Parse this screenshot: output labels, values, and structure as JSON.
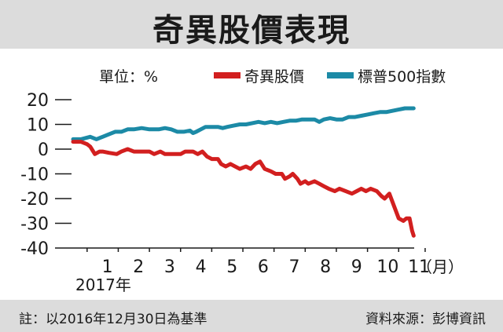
{
  "title": "奇異股價表現",
  "unit_label": "單位：%",
  "year_label": "2017年",
  "footnote": "註：以2016年12月30日為基準",
  "source": "資料來源：彭博資訊",
  "colors": {
    "ge": "#d21f1f",
    "sp500": "#1c8aa6",
    "band": "#dcdcdc"
  },
  "chart_data": {
    "type": "line",
    "title": "奇異股價表現",
    "ylabel": "單位：%",
    "xlabel": "",
    "ylim": [
      -40,
      20
    ],
    "xlim": [
      0,
      11.2
    ],
    "yticks": [
      20,
      10,
      0,
      -10,
      -20,
      -30,
      -40
    ],
    "ytick_labels": [
      "20",
      "10",
      "0",
      "-10",
      "-20",
      "-30",
      "-40"
    ],
    "xticks": [
      1,
      2,
      3,
      4,
      5,
      6,
      7,
      8,
      9,
      10,
      11
    ],
    "xtick_labels": [
      "1",
      "2",
      "3",
      "4",
      "5",
      "6",
      "7",
      "8",
      "9",
      "10",
      "11"
    ],
    "x_unit_label": "（月）",
    "grid": false,
    "legend_position": "top",
    "series": [
      {
        "name": "奇異股價",
        "color": "#d21f1f",
        "points": [
          [
            0.05,
            3
          ],
          [
            0.3,
            3
          ],
          [
            0.5,
            2
          ],
          [
            0.6,
            1
          ],
          [
            0.75,
            -2
          ],
          [
            0.9,
            -1
          ],
          [
            1.0,
            -1
          ],
          [
            1.2,
            -1.5
          ],
          [
            1.45,
            -2
          ],
          [
            1.6,
            -1
          ],
          [
            1.8,
            0
          ],
          [
            2.0,
            -1
          ],
          [
            2.25,
            -1
          ],
          [
            2.5,
            -1
          ],
          [
            2.65,
            -2
          ],
          [
            2.85,
            -1
          ],
          [
            3.0,
            -2
          ],
          [
            3.25,
            -2
          ],
          [
            3.5,
            -2
          ],
          [
            3.65,
            -1
          ],
          [
            3.9,
            -1
          ],
          [
            4.05,
            -2
          ],
          [
            4.2,
            -1
          ],
          [
            4.35,
            -3
          ],
          [
            4.5,
            -4
          ],
          [
            4.7,
            -4
          ],
          [
            4.8,
            -6
          ],
          [
            4.95,
            -7
          ],
          [
            5.1,
            -6
          ],
          [
            5.25,
            -7
          ],
          [
            5.4,
            -8
          ],
          [
            5.6,
            -7
          ],
          [
            5.75,
            -8
          ],
          [
            5.9,
            -6
          ],
          [
            6.05,
            -5
          ],
          [
            6.2,
            -8
          ],
          [
            6.4,
            -9
          ],
          [
            6.55,
            -10
          ],
          [
            6.75,
            -10
          ],
          [
            6.85,
            -12
          ],
          [
            7.0,
            -11
          ],
          [
            7.1,
            -10
          ],
          [
            7.25,
            -12
          ],
          [
            7.35,
            -14
          ],
          [
            7.5,
            -13
          ],
          [
            7.6,
            -14
          ],
          [
            7.8,
            -13
          ],
          [
            7.95,
            -14
          ],
          [
            8.1,
            -15
          ],
          [
            8.25,
            -16
          ],
          [
            8.45,
            -17
          ],
          [
            8.6,
            -16
          ],
          [
            8.8,
            -17
          ],
          [
            9.0,
            -18
          ],
          [
            9.15,
            -17
          ],
          [
            9.3,
            -16
          ],
          [
            9.45,
            -17
          ],
          [
            9.6,
            -16
          ],
          [
            9.8,
            -17
          ],
          [
            9.95,
            -19
          ],
          [
            10.05,
            -20
          ],
          [
            10.2,
            -18
          ],
          [
            10.35,
            -23
          ],
          [
            10.5,
            -28
          ],
          [
            10.65,
            -29
          ],
          [
            10.75,
            -28
          ],
          [
            10.85,
            -28
          ],
          [
            10.93,
            -33
          ],
          [
            10.98,
            -35
          ]
        ]
      },
      {
        "name": "標普500指數",
        "color": "#1c8aa6",
        "points": [
          [
            0.05,
            4
          ],
          [
            0.3,
            4
          ],
          [
            0.6,
            5
          ],
          [
            0.8,
            4
          ],
          [
            1.0,
            5
          ],
          [
            1.2,
            6
          ],
          [
            1.4,
            7
          ],
          [
            1.6,
            7
          ],
          [
            1.8,
            8
          ],
          [
            2.0,
            8
          ],
          [
            2.25,
            8.5
          ],
          [
            2.5,
            8
          ],
          [
            2.65,
            8
          ],
          [
            2.8,
            8
          ],
          [
            3.0,
            8.5
          ],
          [
            3.2,
            8
          ],
          [
            3.4,
            7
          ],
          [
            3.6,
            7
          ],
          [
            3.8,
            7.5
          ],
          [
            3.9,
            6.5
          ],
          [
            4.0,
            7
          ],
          [
            4.15,
            8
          ],
          [
            4.3,
            9
          ],
          [
            4.5,
            9
          ],
          [
            4.7,
            9
          ],
          [
            4.85,
            8.5
          ],
          [
            5.0,
            9
          ],
          [
            5.2,
            9.5
          ],
          [
            5.4,
            10
          ],
          [
            5.6,
            10
          ],
          [
            5.8,
            10.5
          ],
          [
            6.0,
            11
          ],
          [
            6.2,
            10.5
          ],
          [
            6.4,
            11
          ],
          [
            6.6,
            10.5
          ],
          [
            6.8,
            11
          ],
          [
            7.0,
            11.5
          ],
          [
            7.2,
            11.5
          ],
          [
            7.4,
            12
          ],
          [
            7.6,
            12
          ],
          [
            7.8,
            12
          ],
          [
            7.95,
            11
          ],
          [
            8.1,
            12
          ],
          [
            8.3,
            12.5
          ],
          [
            8.5,
            12
          ],
          [
            8.7,
            12
          ],
          [
            8.9,
            13
          ],
          [
            9.1,
            13
          ],
          [
            9.3,
            13.5
          ],
          [
            9.5,
            14
          ],
          [
            9.7,
            14.5
          ],
          [
            9.9,
            15
          ],
          [
            10.1,
            15
          ],
          [
            10.3,
            15.5
          ],
          [
            10.5,
            16
          ],
          [
            10.7,
            16.5
          ],
          [
            10.9,
            16.5
          ],
          [
            10.98,
            16.5
          ]
        ]
      }
    ]
  }
}
